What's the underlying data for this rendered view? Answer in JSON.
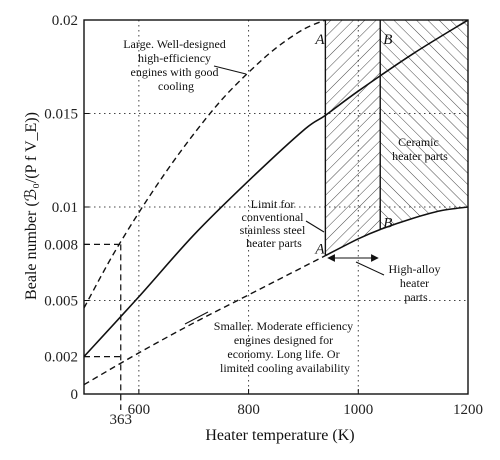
{
  "chart_data": {
    "type": "line",
    "title": "",
    "xlabel": "Heater temperature (K)",
    "ylabel": "Beale number (ℬ₀/(P f V_E))",
    "xlim": [
      500,
      1200
    ],
    "ylim": [
      0,
      0.02
    ],
    "x_ticks": [
      600,
      800,
      1000,
      1200
    ],
    "x_tick_labels": [
      "600",
      "800",
      "1000",
      "1200"
    ],
    "y_ticks": [
      0.002,
      0.005,
      0.008,
      0.01,
      0.015,
      0.02
    ],
    "y_tick_labels": [
      "0.002",
      "0.005",
      "0.008",
      "0.01",
      "0.015",
      "0.02"
    ],
    "y_zero_label": "0",
    "grid": "dotted",
    "series": [
      {
        "style": "dashed",
        "x": [
          500,
          550,
          600,
          650,
          700,
          750,
          800,
          850,
          900,
          940
        ],
        "y": [
          0.0046,
          0.0073,
          0.0097,
          0.0119,
          0.0139,
          0.0157,
          0.0172,
          0.0185,
          0.0195,
          0.02
        ]
      },
      {
        "style": "solid",
        "x": [
          500,
          600,
          700,
          800,
          900,
          940,
          1000,
          1100,
          1200
        ],
        "y": [
          0.002,
          0.0052,
          0.0085,
          0.0114,
          0.0141,
          0.0149,
          0.0162,
          0.0182,
          0.02
        ]
      },
      {
        "style": "dashed",
        "x": [
          500,
          600,
          700,
          800,
          900,
          940
        ],
        "y": [
          0.0005,
          0.0022,
          0.0038,
          0.0053,
          0.0068,
          0.0074
        ]
      },
      {
        "style": "solid",
        "x": [
          940,
          1000,
          1040,
          1100,
          1150,
          1200
        ],
        "y": [
          0.0074,
          0.0083,
          0.0088,
          0.0094,
          0.0098,
          0.01
        ]
      }
    ],
    "reference": {
      "x_label": "363",
      "y_from_axis_labels": [
        0.008,
        0.002
      ],
      "x": 567
    },
    "regions": [
      {
        "x_range": [
          940,
          1040
        ],
        "hatch": "diagonal-up"
      },
      {
        "x_range": [
          1040,
          1200
        ],
        "hatch": "diagonal-down"
      }
    ],
    "markers": [
      {
        "label": "A",
        "x": 940,
        "y": 0.02
      },
      {
        "label": "B",
        "x": 1040,
        "y": 0.02
      },
      {
        "label": "A",
        "x": 940,
        "y": 0.0074
      },
      {
        "label": "B",
        "x": 1040,
        "y": 0.0088
      }
    ],
    "annotations": [
      {
        "id": "large",
        "lines": [
          "Large. Well-designed",
          "high-efficiency",
          "engines with good",
          "cooling"
        ]
      },
      {
        "id": "ceramic",
        "lines": [
          "Ceramic",
          "heater parts"
        ]
      },
      {
        "id": "limit",
        "lines": [
          "Limit for",
          "conventional",
          "stainless steel",
          "heater parts"
        ]
      },
      {
        "id": "alloy",
        "lines": [
          "High-alloy",
          "heater",
          "parts"
        ]
      },
      {
        "id": "smaller",
        "lines": [
          "Smaller. Moderate efficiency",
          "engines designed for",
          "economy. Long life. Or",
          "limited cooling availability"
        ]
      }
    ]
  }
}
